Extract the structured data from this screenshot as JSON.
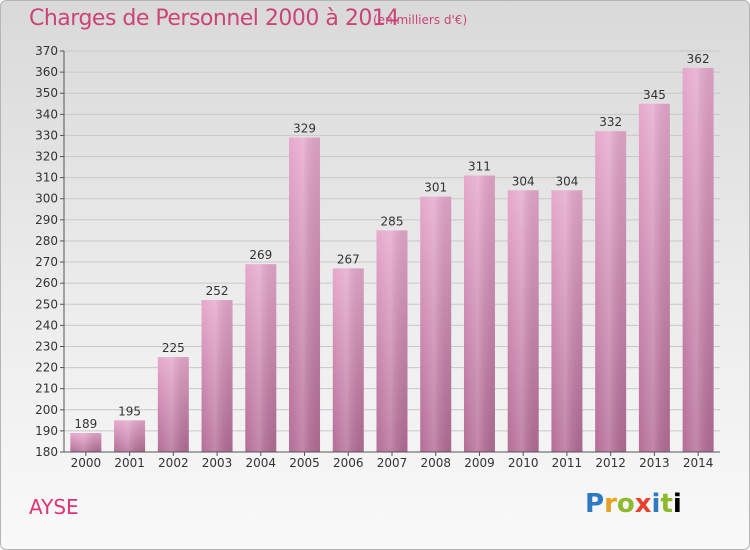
{
  "header": {
    "title": "Charges de Personnel 2000 à 2014",
    "subtitle": "(en milliers d'€)"
  },
  "footer": {
    "location": "AYSE",
    "brand": "Proxiti"
  },
  "colors": {
    "bar_top": "#e6a8cc",
    "bar_bottom": "#b46d97",
    "title": "#cc4477",
    "grid": "#c8c8c8"
  },
  "chart_data": {
    "type": "bar",
    "title": "Charges de Personnel 2000 à 2014",
    "subtitle": "(en milliers d'€)",
    "xlabel": "",
    "ylabel": "",
    "categories": [
      "2000",
      "2001",
      "2002",
      "2003",
      "2004",
      "2005",
      "2006",
      "2007",
      "2008",
      "2009",
      "2010",
      "2011",
      "2012",
      "2013",
      "2014"
    ],
    "values": [
      189,
      195,
      225,
      252,
      269,
      329,
      267,
      285,
      301,
      311,
      304,
      304,
      332,
      345,
      362
    ],
    "ylim": [
      180,
      370
    ],
    "ytick_step": 10,
    "grid": true,
    "legend": "none"
  }
}
